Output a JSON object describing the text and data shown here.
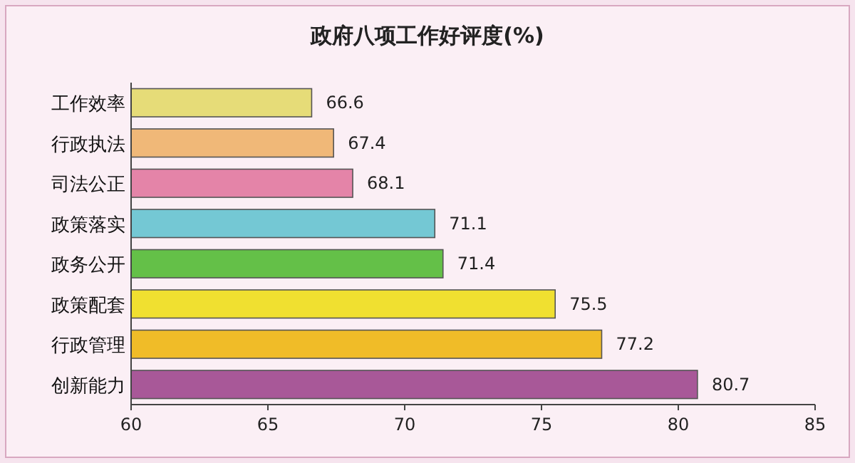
{
  "chart_data": {
    "type": "bar",
    "orientation": "horizontal",
    "title": "政府八项工作好评度(%)",
    "categories": [
      "工作效率",
      "行政执法",
      "司法公正",
      "政策落实",
      "政务公开",
      "政策配套",
      "行政管理",
      "创新能力"
    ],
    "values": [
      66.6,
      67.4,
      68.1,
      71.1,
      71.4,
      75.5,
      77.2,
      80.7
    ],
    "colors": [
      "#e6dc78",
      "#f0b878",
      "#e484a8",
      "#74c8d4",
      "#64c048",
      "#f0e030",
      "#f0bc28",
      "#a85898"
    ],
    "xlim": [
      60,
      85
    ],
    "xticks": [
      60,
      65,
      70,
      75,
      80,
      85
    ],
    "data_labels": true,
    "grid": false
  }
}
